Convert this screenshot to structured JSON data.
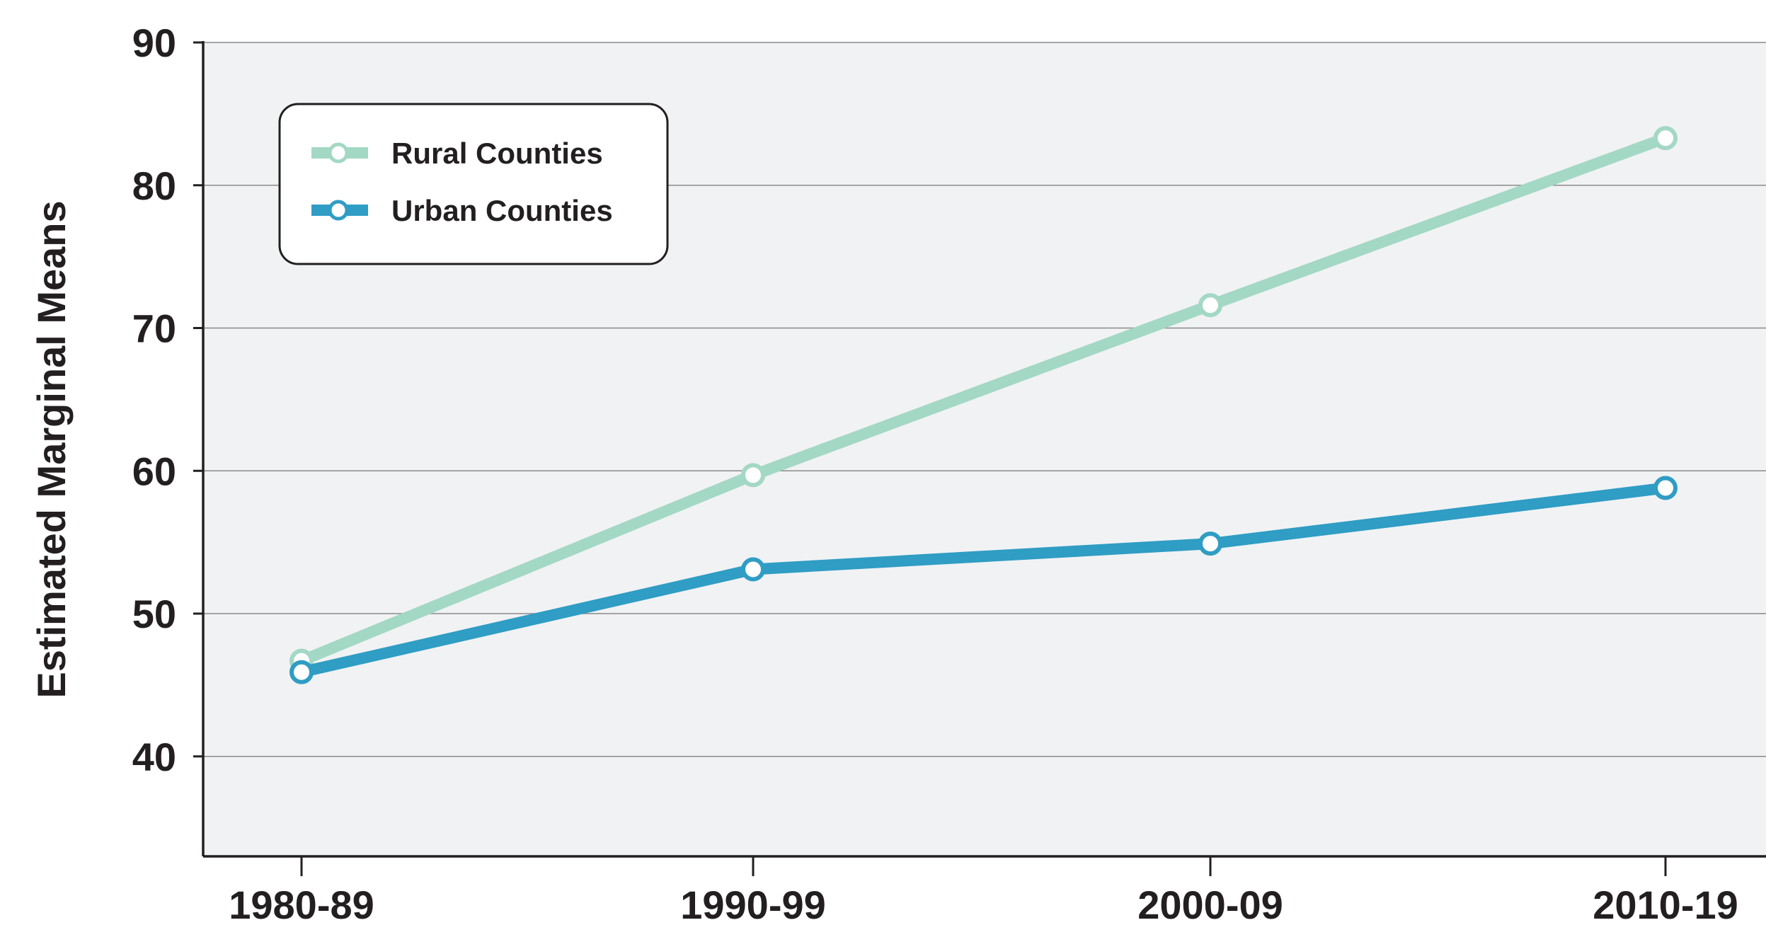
{
  "chart_data": {
    "type": "line",
    "title": "",
    "xlabel": "",
    "ylabel": "Estimated Marginal Means",
    "categories": [
      "1980-89",
      "1990-99",
      "2000-09",
      "2010-19"
    ],
    "ylim": [
      33,
      90
    ],
    "yticks": [
      40,
      50,
      60,
      70,
      80,
      90
    ],
    "grid": true,
    "legend_position": "top-left",
    "series": [
      {
        "name": "Rural Counties",
        "values": [
          46.7,
          59.7,
          71.6,
          83.3
        ],
        "color": "#a3d8c4"
      },
      {
        "name": "Urban Counties",
        "values": [
          45.9,
          53.1,
          54.9,
          58.8
        ],
        "color": "#2f9dc4"
      }
    ]
  },
  "colors": {
    "plot_background": "#f1f2f4",
    "gridline": "#8a8a8a",
    "axis": "#231f20"
  }
}
